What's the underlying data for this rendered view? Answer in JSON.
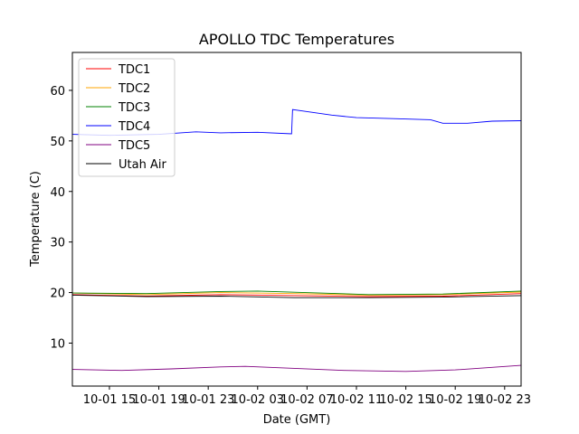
{
  "chart_data": {
    "type": "line",
    "title": "APOLLO TDC Temperatures",
    "xlabel": "Date (GMT)",
    "ylabel": "Temperature (C)",
    "x_unit": "datetime (GMT)",
    "xlim": [
      "2017-10-01 12:00",
      "2017-10-03 00:20"
    ],
    "ylim": [
      1.5,
      67.5
    ],
    "xticks": [
      {
        "x": "2017-10-01 15:00",
        "label": "10-01 15"
      },
      {
        "x": "2017-10-01 19:00",
        "label": "10-01 19"
      },
      {
        "x": "2017-10-01 23:00",
        "label": "10-01 23"
      },
      {
        "x": "2017-10-02 03:00",
        "label": "10-02 03"
      },
      {
        "x": "2017-10-02 07:00",
        "label": "10-02 07"
      },
      {
        "x": "2017-10-02 11:00",
        "label": "10-02 11"
      },
      {
        "x": "2017-10-02 15:00",
        "label": "10-02 15"
      },
      {
        "x": "2017-10-02 19:00",
        "label": "10-02 19"
      },
      {
        "x": "2017-10-02 23:00",
        "label": "10-02 23"
      }
    ],
    "yticks": [
      10,
      20,
      30,
      40,
      50,
      60
    ],
    "grid": false,
    "legend_position": "top-left",
    "series": [
      {
        "name": "TDC1",
        "color": "#ff0000",
        "points": [
          [
            "2017-10-01 12:00",
            19.6
          ],
          [
            "2017-10-01 18:00",
            19.3
          ],
          [
            "2017-10-02 00:00",
            19.6
          ],
          [
            "2017-10-02 06:00",
            19.4
          ],
          [
            "2017-10-02 12:00",
            19.2
          ],
          [
            "2017-10-02 18:00",
            19.3
          ],
          [
            "2017-10-03 00:20",
            19.8
          ]
        ]
      },
      {
        "name": "TDC2",
        "color": "#ffa500",
        "points": [
          [
            "2017-10-01 12:00",
            19.9
          ],
          [
            "2017-10-01 18:00",
            19.6
          ],
          [
            "2017-10-02 00:00",
            20.0
          ],
          [
            "2017-10-02 06:00",
            19.8
          ],
          [
            "2017-10-02 12:00",
            19.5
          ],
          [
            "2017-10-02 18:00",
            19.6
          ],
          [
            "2017-10-03 00:20",
            20.1
          ]
        ]
      },
      {
        "name": "TDC3",
        "color": "#008000",
        "points": [
          [
            "2017-10-01 12:00",
            19.9
          ],
          [
            "2017-10-01 18:00",
            19.8
          ],
          [
            "2017-10-02 00:00",
            20.2
          ],
          [
            "2017-10-02 03:00",
            20.3
          ],
          [
            "2017-10-02 12:00",
            19.6
          ],
          [
            "2017-10-02 18:00",
            19.7
          ],
          [
            "2017-10-03 00:20",
            20.3
          ]
        ]
      },
      {
        "name": "TDC4",
        "color": "#0000ff",
        "points": [
          [
            "2017-10-01 12:00",
            51.3
          ],
          [
            "2017-10-01 15:00",
            51.1
          ],
          [
            "2017-10-01 19:00",
            51.3
          ],
          [
            "2017-10-01 22:00",
            51.8
          ],
          [
            "2017-10-02 00:00",
            51.6
          ],
          [
            "2017-10-02 03:00",
            51.7
          ],
          [
            "2017-10-02 05:45",
            51.4
          ],
          [
            "2017-10-02 05:50",
            56.2
          ],
          [
            "2017-10-02 07:00",
            55.8
          ],
          [
            "2017-10-02 09:00",
            55.1
          ],
          [
            "2017-10-02 11:00",
            54.6
          ],
          [
            "2017-10-02 14:00",
            54.4
          ],
          [
            "2017-10-02 17:00",
            54.2
          ],
          [
            "2017-10-02 18:00",
            53.5
          ],
          [
            "2017-10-02 20:00",
            53.5
          ],
          [
            "2017-10-02 22:00",
            53.9
          ],
          [
            "2017-10-03 00:20",
            54.0
          ]
        ]
      },
      {
        "name": "TDC5",
        "color": "#800080",
        "points": [
          [
            "2017-10-01 12:00",
            4.8
          ],
          [
            "2017-10-01 16:00",
            4.6
          ],
          [
            "2017-10-01 20:00",
            4.9
          ],
          [
            "2017-10-02 00:00",
            5.3
          ],
          [
            "2017-10-02 02:00",
            5.4
          ],
          [
            "2017-10-02 06:00",
            5.0
          ],
          [
            "2017-10-02 10:00",
            4.6
          ],
          [
            "2017-10-02 15:00",
            4.4
          ],
          [
            "2017-10-02 19:00",
            4.7
          ],
          [
            "2017-10-03 00:20",
            5.6
          ]
        ]
      },
      {
        "name": "Utah Air",
        "color": "#000000",
        "points": [
          [
            "2017-10-01 12:00",
            19.5
          ],
          [
            "2017-10-01 18:00",
            19.2
          ],
          [
            "2017-10-02 00:00",
            19.3
          ],
          [
            "2017-10-02 06:00",
            19.0
          ],
          [
            "2017-10-02 12:00",
            19.0
          ],
          [
            "2017-10-02 18:00",
            19.1
          ],
          [
            "2017-10-03 00:20",
            19.4
          ]
        ]
      }
    ]
  }
}
